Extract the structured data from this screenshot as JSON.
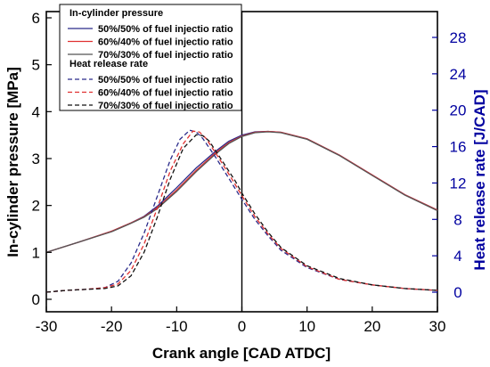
{
  "chart_data": {
    "type": "line",
    "xlabel": "Crank angle [CAD ATDC]",
    "ylabel_left": "In-cylinder pressure [MPa]",
    "ylabel_right": "Heat release rate [J/CAD]",
    "xlim": [
      -30,
      30
    ],
    "ylim_left": [
      -0.2,
      6
    ],
    "ylim_right": [
      -1,
      31
    ],
    "xticks": [
      -30,
      -20,
      -10,
      0,
      10,
      20,
      30
    ],
    "yticks_left": [
      0,
      1,
      2,
      3,
      4,
      5,
      6
    ],
    "yticks_right": [
      0,
      4,
      8,
      12,
      16,
      20,
      24,
      28
    ],
    "right_axis_color": "#0000a0",
    "grid": false,
    "tdc_line": true,
    "legend_position": "top-left",
    "legend": {
      "group1_title": "In-cylinder pressure",
      "group2_title": "Heat release rate"
    },
    "series": [
      {
        "name": "50%/50% of fuel injectio ratio",
        "group": "pressure",
        "axis": "left",
        "color": "#2a2a8a",
        "dash": "solid",
        "x": [
          -30,
          -25,
          -20,
          -17,
          -15,
          -13,
          -10,
          -7,
          -4,
          -2,
          0,
          2,
          4,
          6,
          10,
          15,
          20,
          25,
          30
        ],
        "y": [
          1.0,
          1.22,
          1.45,
          1.63,
          1.77,
          1.98,
          2.38,
          2.8,
          3.16,
          3.37,
          3.5,
          3.57,
          3.58,
          3.56,
          3.42,
          3.07,
          2.65,
          2.23,
          1.9
        ]
      },
      {
        "name": "60%/40% of fuel injectio ratio",
        "group": "pressure",
        "axis": "left",
        "color": "#e03030",
        "dash": "solid",
        "x": [
          -30,
          -25,
          -20,
          -17,
          -15,
          -13,
          -10,
          -7,
          -4,
          -2,
          0,
          2,
          4,
          6,
          10,
          15,
          20,
          25,
          30
        ],
        "y": [
          1.0,
          1.22,
          1.45,
          1.63,
          1.76,
          1.95,
          2.33,
          2.75,
          3.13,
          3.34,
          3.48,
          3.56,
          3.58,
          3.56,
          3.42,
          3.07,
          2.65,
          2.23,
          1.9
        ]
      },
      {
        "name": "70%/30% of fuel injectio ratio",
        "group": "pressure",
        "axis": "left",
        "color": "#555555",
        "dash": "solid",
        "x": [
          -30,
          -25,
          -20,
          -17,
          -15,
          -13,
          -10,
          -7,
          -4,
          -2,
          0,
          2,
          4,
          6,
          10,
          15,
          20,
          25,
          30
        ],
        "y": [
          1.0,
          1.22,
          1.44,
          1.62,
          1.75,
          1.93,
          2.3,
          2.72,
          3.1,
          3.32,
          3.47,
          3.55,
          3.57,
          3.55,
          3.41,
          3.06,
          2.64,
          2.22,
          1.89
        ]
      },
      {
        "name": "50%/50% of fuel injectio ratio",
        "group": "hrr",
        "axis": "right",
        "color": "#2a2a8a",
        "dash": "dashed",
        "x": [
          -30,
          -27,
          -24,
          -21,
          -19,
          -17,
          -15,
          -13,
          -11,
          -9.5,
          -8,
          -7,
          -6,
          -4,
          -2,
          0,
          2,
          4,
          6,
          10,
          15,
          20,
          25,
          30
        ],
        "y": [
          0,
          0.2,
          0.3,
          0.5,
          1.2,
          3.2,
          6.5,
          10.5,
          14.5,
          16.8,
          17.8,
          17.6,
          16.9,
          14.8,
          12.5,
          10.2,
          8.0,
          6.2,
          4.6,
          2.7,
          1.4,
          0.8,
          0.4,
          0.2
        ]
      },
      {
        "name": "60%/40% of fuel injectio ratio",
        "group": "hrr",
        "axis": "right",
        "color": "#e03030",
        "dash": "dashed",
        "x": [
          -30,
          -27,
          -24,
          -21,
          -19,
          -17,
          -15,
          -13,
          -11,
          -9,
          -7.5,
          -6.5,
          -5.5,
          -3.5,
          -1.5,
          0,
          2,
          4,
          6,
          10,
          15,
          20,
          25,
          30
        ],
        "y": [
          0,
          0.2,
          0.3,
          0.5,
          0.9,
          2.4,
          5.3,
          9.2,
          13.3,
          16.3,
          17.7,
          17.6,
          16.9,
          14.7,
          12.4,
          10.6,
          8.3,
          6.4,
          4.8,
          2.8,
          1.4,
          0.8,
          0.4,
          0.2
        ]
      },
      {
        "name": "70%/30% of fuel injectio ratio",
        "group": "hrr",
        "axis": "right",
        "color": "#111111",
        "dash": "dashed",
        "x": [
          -30,
          -27,
          -24,
          -21,
          -19,
          -17,
          -15,
          -13,
          -11,
          -9,
          -7,
          -6,
          -5,
          -3,
          -1,
          0,
          2,
          4,
          6,
          10,
          15,
          20,
          25,
          30
        ],
        "y": [
          0,
          0.2,
          0.3,
          0.4,
          0.7,
          1.8,
          4.4,
          8.2,
          12.4,
          15.8,
          17.3,
          17.2,
          16.6,
          14.4,
          12.2,
          10.9,
          8.6,
          6.6,
          4.9,
          2.9,
          1.5,
          0.8,
          0.4,
          0.2
        ]
      }
    ]
  }
}
